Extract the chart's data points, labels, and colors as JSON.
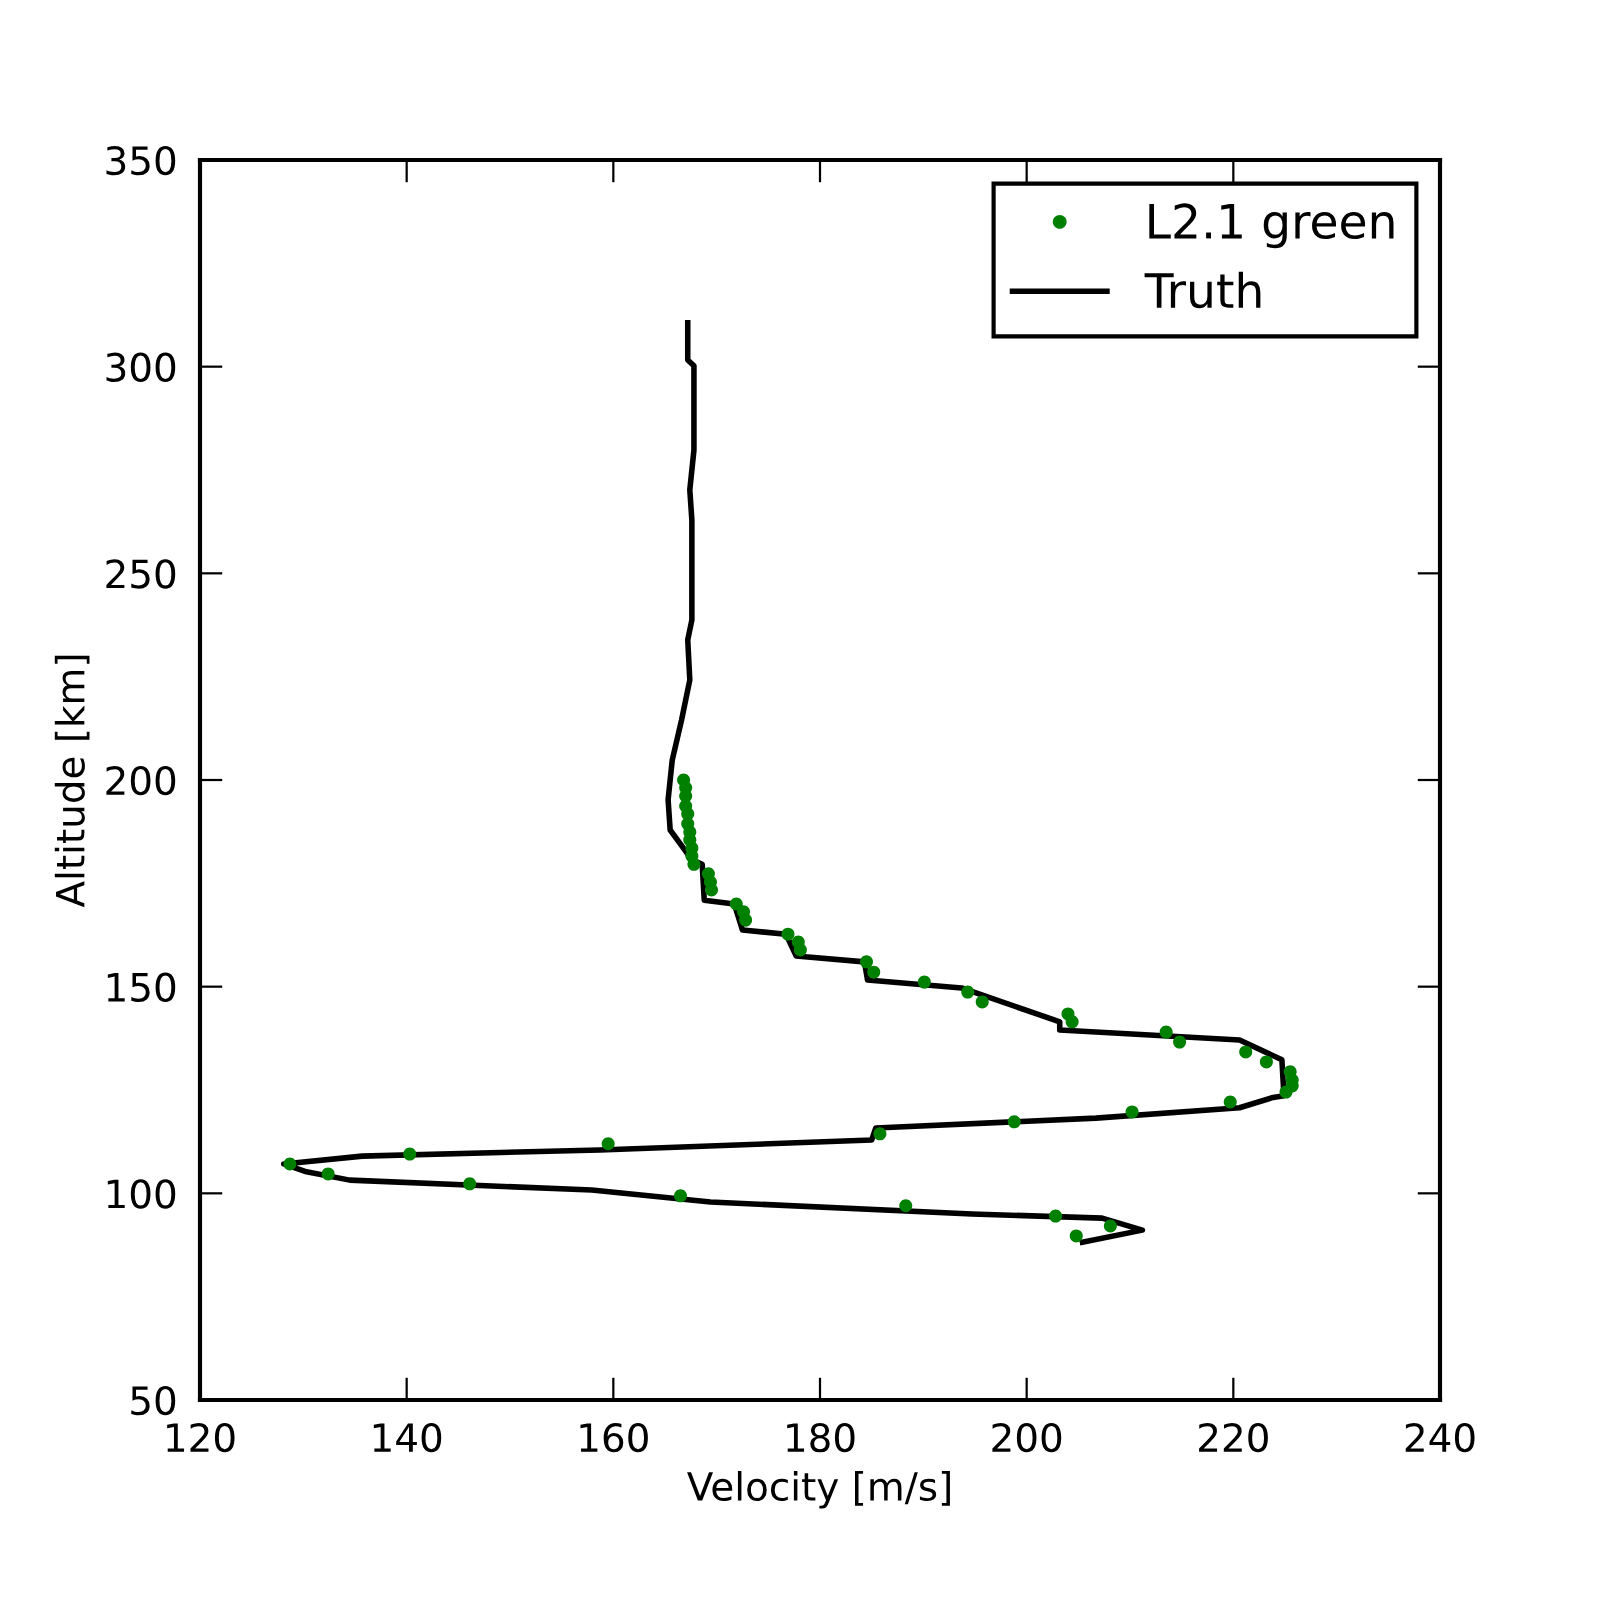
{
  "chart_data": {
    "type": "scatter",
    "xlabel": "Velocity [m/s]",
    "ylabel": "Altitude [km]",
    "xlim": [
      120,
      240
    ],
    "ylim": [
      50,
      350
    ],
    "xticks": [
      120,
      140,
      160,
      180,
      200,
      220,
      240
    ],
    "yticks": [
      50,
      100,
      150,
      200,
      250,
      300,
      350
    ],
    "grid": false,
    "legend": "top right",
    "series": [
      {
        "name": "L2.1 green",
        "color": "#008000",
        "marker": "circle",
        "x": [
          166.8,
          167.0,
          167.0,
          167.0,
          167.2,
          167.2,
          167.4,
          167.4,
          167.6,
          167.6,
          167.8,
          169.2,
          169.4,
          169.5,
          171.9,
          172.6,
          172.8,
          176.9,
          177.9,
          178.1,
          184.5,
          185.2,
          190.1,
          194.3,
          195.7,
          204.0,
          204.4,
          213.5,
          214.8,
          221.2,
          223.2,
          225.5,
          225.7,
          225.7,
          225.1,
          219.7,
          210.2,
          198.8,
          185.8,
          159.5,
          140.3,
          128.7,
          132.4,
          146.1,
          166.5,
          188.3,
          202.8,
          208.1,
          204.8
        ],
        "values": [
          200,
          198.1,
          196.1,
          193.7,
          191.8,
          189.4,
          187.4,
          185.5,
          183.5,
          181.6,
          179.6,
          177.3,
          175.3,
          173.4,
          170,
          168.1,
          166.1,
          162.7,
          160.8,
          158.9,
          156,
          153.5,
          151.1,
          148.7,
          146.3,
          143.4,
          141.5,
          139.0,
          136.6,
          134.2,
          131.8,
          129.4,
          127.4,
          126,
          124.5,
          122.1,
          119.7,
          117.3,
          114.4,
          112.0,
          109.5,
          107.1,
          104.7,
          102.3,
          99.4,
          97.0,
          94.5,
          92.1,
          89.7
        ]
      },
      {
        "name": "Truth",
        "type": "line",
        "color": "#000000",
        "marker": "none",
        "line_style": "solid",
        "x": [
          167.2,
          167.2,
          167.8,
          167.8,
          167.4,
          167.6,
          167.6,
          167.2,
          167.4,
          166.6,
          165.7,
          165.3,
          165.5,
          166.5,
          167.6,
          168.6,
          168.8,
          171.7,
          172.5,
          176.7,
          177.7,
          184.3,
          184.6,
          193.7,
          203.2,
          203.2,
          220.6,
          224.7,
          224.9,
          223.7,
          220.6,
          206.7,
          185.4,
          185.0,
          158.7,
          135.7,
          128.1,
          130.3,
          134.5,
          157.9,
          169.4,
          194.7,
          207.3,
          211.2,
          205.4
        ],
        "values": [
          310.6,
          301.6,
          300.2,
          279.8,
          270.2,
          262.9,
          238.7,
          233.9,
          224.2,
          214.5,
          204.8,
          195.2,
          187.9,
          184.5,
          180.7,
          179.6,
          170.9,
          170,
          163.7,
          162.7,
          157.4,
          156,
          151.6,
          149.7,
          141.5,
          139.5,
          137.1,
          132.3,
          123.6,
          123.1,
          120.7,
          118.2,
          115.8,
          112.9,
          110.5,
          109.0,
          107.1,
          105.2,
          103.2,
          100.8,
          97.9,
          95.0,
          94.0,
          91.1,
          88.2
        ]
      }
    ]
  }
}
